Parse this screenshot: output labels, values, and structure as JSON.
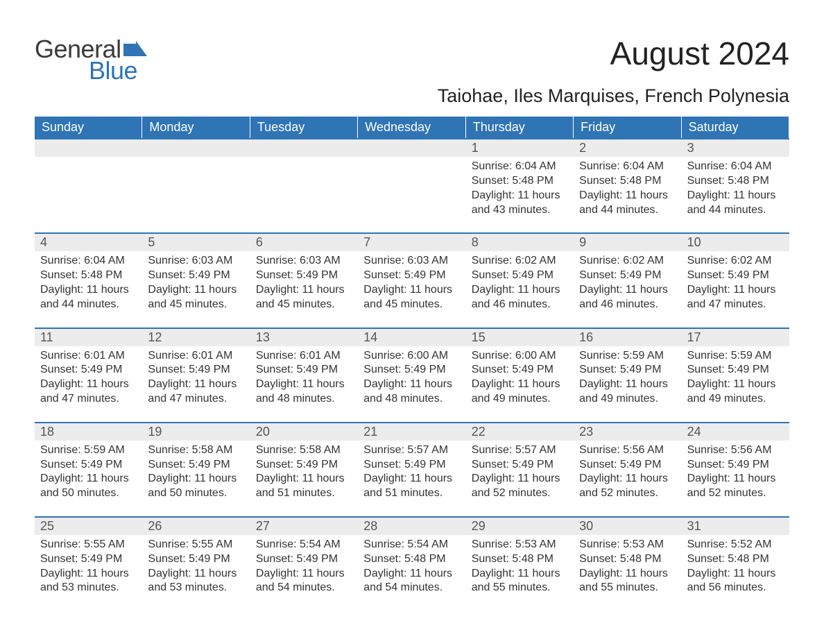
{
  "logo": {
    "word1": "General",
    "word2": "Blue",
    "accent_color": "#2f74b5",
    "text_color": "#3a3a3a"
  },
  "title": "August 2024",
  "subtitle": "Taiohae, Iles Marquises, French Polynesia",
  "colors": {
    "header_bg": "#2f74b5",
    "header_text": "#ffffff",
    "strip_bg": "#ececec",
    "strip_border": "#2f74b5",
    "body_text": "#333333",
    "daynum_text": "#555555",
    "page_bg": "#ffffff"
  },
  "typography": {
    "title_fontsize": 46,
    "subtitle_fontsize": 27,
    "dayheader_fontsize": 18,
    "daynum_fontsize": 18,
    "body_fontsize": 16,
    "font_family": "Arial"
  },
  "layout": {
    "columns": 7,
    "rows": 5,
    "leading_blanks": 4
  },
  "day_headers": [
    "Sunday",
    "Monday",
    "Tuesday",
    "Wednesday",
    "Thursday",
    "Friday",
    "Saturday"
  ],
  "days": [
    {
      "n": "1",
      "sunrise": "6:04 AM",
      "sunset": "5:48 PM",
      "daylight": "11 hours and 43 minutes."
    },
    {
      "n": "2",
      "sunrise": "6:04 AM",
      "sunset": "5:48 PM",
      "daylight": "11 hours and 44 minutes."
    },
    {
      "n": "3",
      "sunrise": "6:04 AM",
      "sunset": "5:48 PM",
      "daylight": "11 hours and 44 minutes."
    },
    {
      "n": "4",
      "sunrise": "6:04 AM",
      "sunset": "5:48 PM",
      "daylight": "11 hours and 44 minutes."
    },
    {
      "n": "5",
      "sunrise": "6:03 AM",
      "sunset": "5:49 PM",
      "daylight": "11 hours and 45 minutes."
    },
    {
      "n": "6",
      "sunrise": "6:03 AM",
      "sunset": "5:49 PM",
      "daylight": "11 hours and 45 minutes."
    },
    {
      "n": "7",
      "sunrise": "6:03 AM",
      "sunset": "5:49 PM",
      "daylight": "11 hours and 45 minutes."
    },
    {
      "n": "8",
      "sunrise": "6:02 AM",
      "sunset": "5:49 PM",
      "daylight": "11 hours and 46 minutes."
    },
    {
      "n": "9",
      "sunrise": "6:02 AM",
      "sunset": "5:49 PM",
      "daylight": "11 hours and 46 minutes."
    },
    {
      "n": "10",
      "sunrise": "6:02 AM",
      "sunset": "5:49 PM",
      "daylight": "11 hours and 47 minutes."
    },
    {
      "n": "11",
      "sunrise": "6:01 AM",
      "sunset": "5:49 PM",
      "daylight": "11 hours and 47 minutes."
    },
    {
      "n": "12",
      "sunrise": "6:01 AM",
      "sunset": "5:49 PM",
      "daylight": "11 hours and 47 minutes."
    },
    {
      "n": "13",
      "sunrise": "6:01 AM",
      "sunset": "5:49 PM",
      "daylight": "11 hours and 48 minutes."
    },
    {
      "n": "14",
      "sunrise": "6:00 AM",
      "sunset": "5:49 PM",
      "daylight": "11 hours and 48 minutes."
    },
    {
      "n": "15",
      "sunrise": "6:00 AM",
      "sunset": "5:49 PM",
      "daylight": "11 hours and 49 minutes."
    },
    {
      "n": "16",
      "sunrise": "5:59 AM",
      "sunset": "5:49 PM",
      "daylight": "11 hours and 49 minutes."
    },
    {
      "n": "17",
      "sunrise": "5:59 AM",
      "sunset": "5:49 PM",
      "daylight": "11 hours and 49 minutes."
    },
    {
      "n": "18",
      "sunrise": "5:59 AM",
      "sunset": "5:49 PM",
      "daylight": "11 hours and 50 minutes."
    },
    {
      "n": "19",
      "sunrise": "5:58 AM",
      "sunset": "5:49 PM",
      "daylight": "11 hours and 50 minutes."
    },
    {
      "n": "20",
      "sunrise": "5:58 AM",
      "sunset": "5:49 PM",
      "daylight": "11 hours and 51 minutes."
    },
    {
      "n": "21",
      "sunrise": "5:57 AM",
      "sunset": "5:49 PM",
      "daylight": "11 hours and 51 minutes."
    },
    {
      "n": "22",
      "sunrise": "5:57 AM",
      "sunset": "5:49 PM",
      "daylight": "11 hours and 52 minutes."
    },
    {
      "n": "23",
      "sunrise": "5:56 AM",
      "sunset": "5:49 PM",
      "daylight": "11 hours and 52 minutes."
    },
    {
      "n": "24",
      "sunrise": "5:56 AM",
      "sunset": "5:49 PM",
      "daylight": "11 hours and 52 minutes."
    },
    {
      "n": "25",
      "sunrise": "5:55 AM",
      "sunset": "5:49 PM",
      "daylight": "11 hours and 53 minutes."
    },
    {
      "n": "26",
      "sunrise": "5:55 AM",
      "sunset": "5:49 PM",
      "daylight": "11 hours and 53 minutes."
    },
    {
      "n": "27",
      "sunrise": "5:54 AM",
      "sunset": "5:49 PM",
      "daylight": "11 hours and 54 minutes."
    },
    {
      "n": "28",
      "sunrise": "5:54 AM",
      "sunset": "5:48 PM",
      "daylight": "11 hours and 54 minutes."
    },
    {
      "n": "29",
      "sunrise": "5:53 AM",
      "sunset": "5:48 PM",
      "daylight": "11 hours and 55 minutes."
    },
    {
      "n": "30",
      "sunrise": "5:53 AM",
      "sunset": "5:48 PM",
      "daylight": "11 hours and 55 minutes."
    },
    {
      "n": "31",
      "sunrise": "5:52 AM",
      "sunset": "5:48 PM",
      "daylight": "11 hours and 56 minutes."
    }
  ],
  "labels": {
    "sunrise": "Sunrise:",
    "sunset": "Sunset:",
    "daylight": "Daylight:"
  }
}
